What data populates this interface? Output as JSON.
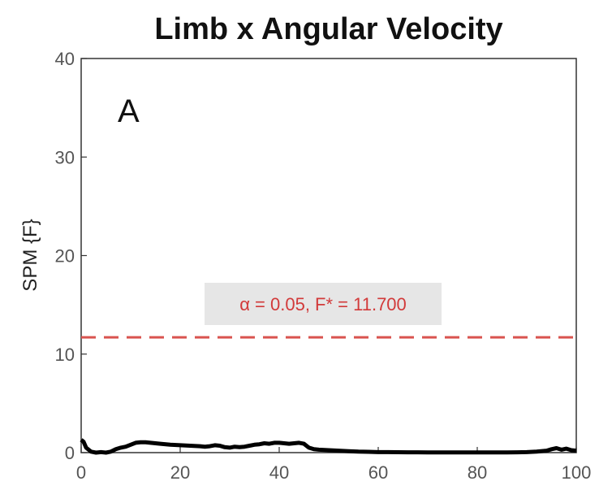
{
  "chart_data": {
    "type": "line",
    "title": "Limb x Angular Velocity",
    "xlabel": "",
    "ylabel": "SPM {F}",
    "panel_label": "A",
    "xlim": [
      0,
      100
    ],
    "ylim": [
      0,
      40
    ],
    "xticks": [
      0,
      20,
      40,
      60,
      80,
      100
    ],
    "yticks": [
      0,
      10,
      20,
      30,
      40
    ],
    "grid": false,
    "threshold": {
      "value": 11.7,
      "label": "α = 0.05, F* = 11.700",
      "color": "#d9534f",
      "style": "dashed"
    },
    "series": [
      {
        "color": "#000000",
        "x": [
          0,
          0.5,
          1,
          2,
          3,
          4,
          5,
          6,
          7,
          8,
          9,
          10,
          11,
          12,
          13,
          14,
          15,
          16,
          18,
          20,
          22,
          24,
          25,
          26,
          27,
          28,
          29,
          30,
          31,
          32,
          33,
          34,
          35,
          36,
          37,
          38,
          39,
          40,
          41,
          42,
          43,
          44,
          45,
          46,
          47,
          48,
          50,
          52,
          54,
          56,
          58,
          60,
          62,
          64,
          66,
          68,
          70,
          72,
          74,
          76,
          78,
          80,
          82,
          84,
          86,
          88,
          90,
          92,
          94,
          95,
          96,
          97,
          98,
          99,
          100
        ],
        "values": [
          1.3,
          1.1,
          0.5,
          0.1,
          0.0,
          0.05,
          0.0,
          0.1,
          0.35,
          0.5,
          0.6,
          0.8,
          1.0,
          1.05,
          1.05,
          1.0,
          0.95,
          0.9,
          0.8,
          0.75,
          0.7,
          0.65,
          0.6,
          0.65,
          0.75,
          0.7,
          0.55,
          0.5,
          0.6,
          0.55,
          0.6,
          0.7,
          0.8,
          0.85,
          0.95,
          0.9,
          1.0,
          1.0,
          0.95,
          0.9,
          0.95,
          1.0,
          0.9,
          0.5,
          0.35,
          0.3,
          0.25,
          0.2,
          0.15,
          0.1,
          0.08,
          0.05,
          0.05,
          0.04,
          0.03,
          0.03,
          0.02,
          0.02,
          0.02,
          0.02,
          0.02,
          0.02,
          0.02,
          0.02,
          0.02,
          0.03,
          0.05,
          0.1,
          0.2,
          0.35,
          0.45,
          0.3,
          0.4,
          0.25,
          0.2
        ]
      }
    ],
    "colors": {
      "axis": "#333333",
      "tick_text": "#555555",
      "threshold_box_bg": "#e6e6e6"
    }
  }
}
